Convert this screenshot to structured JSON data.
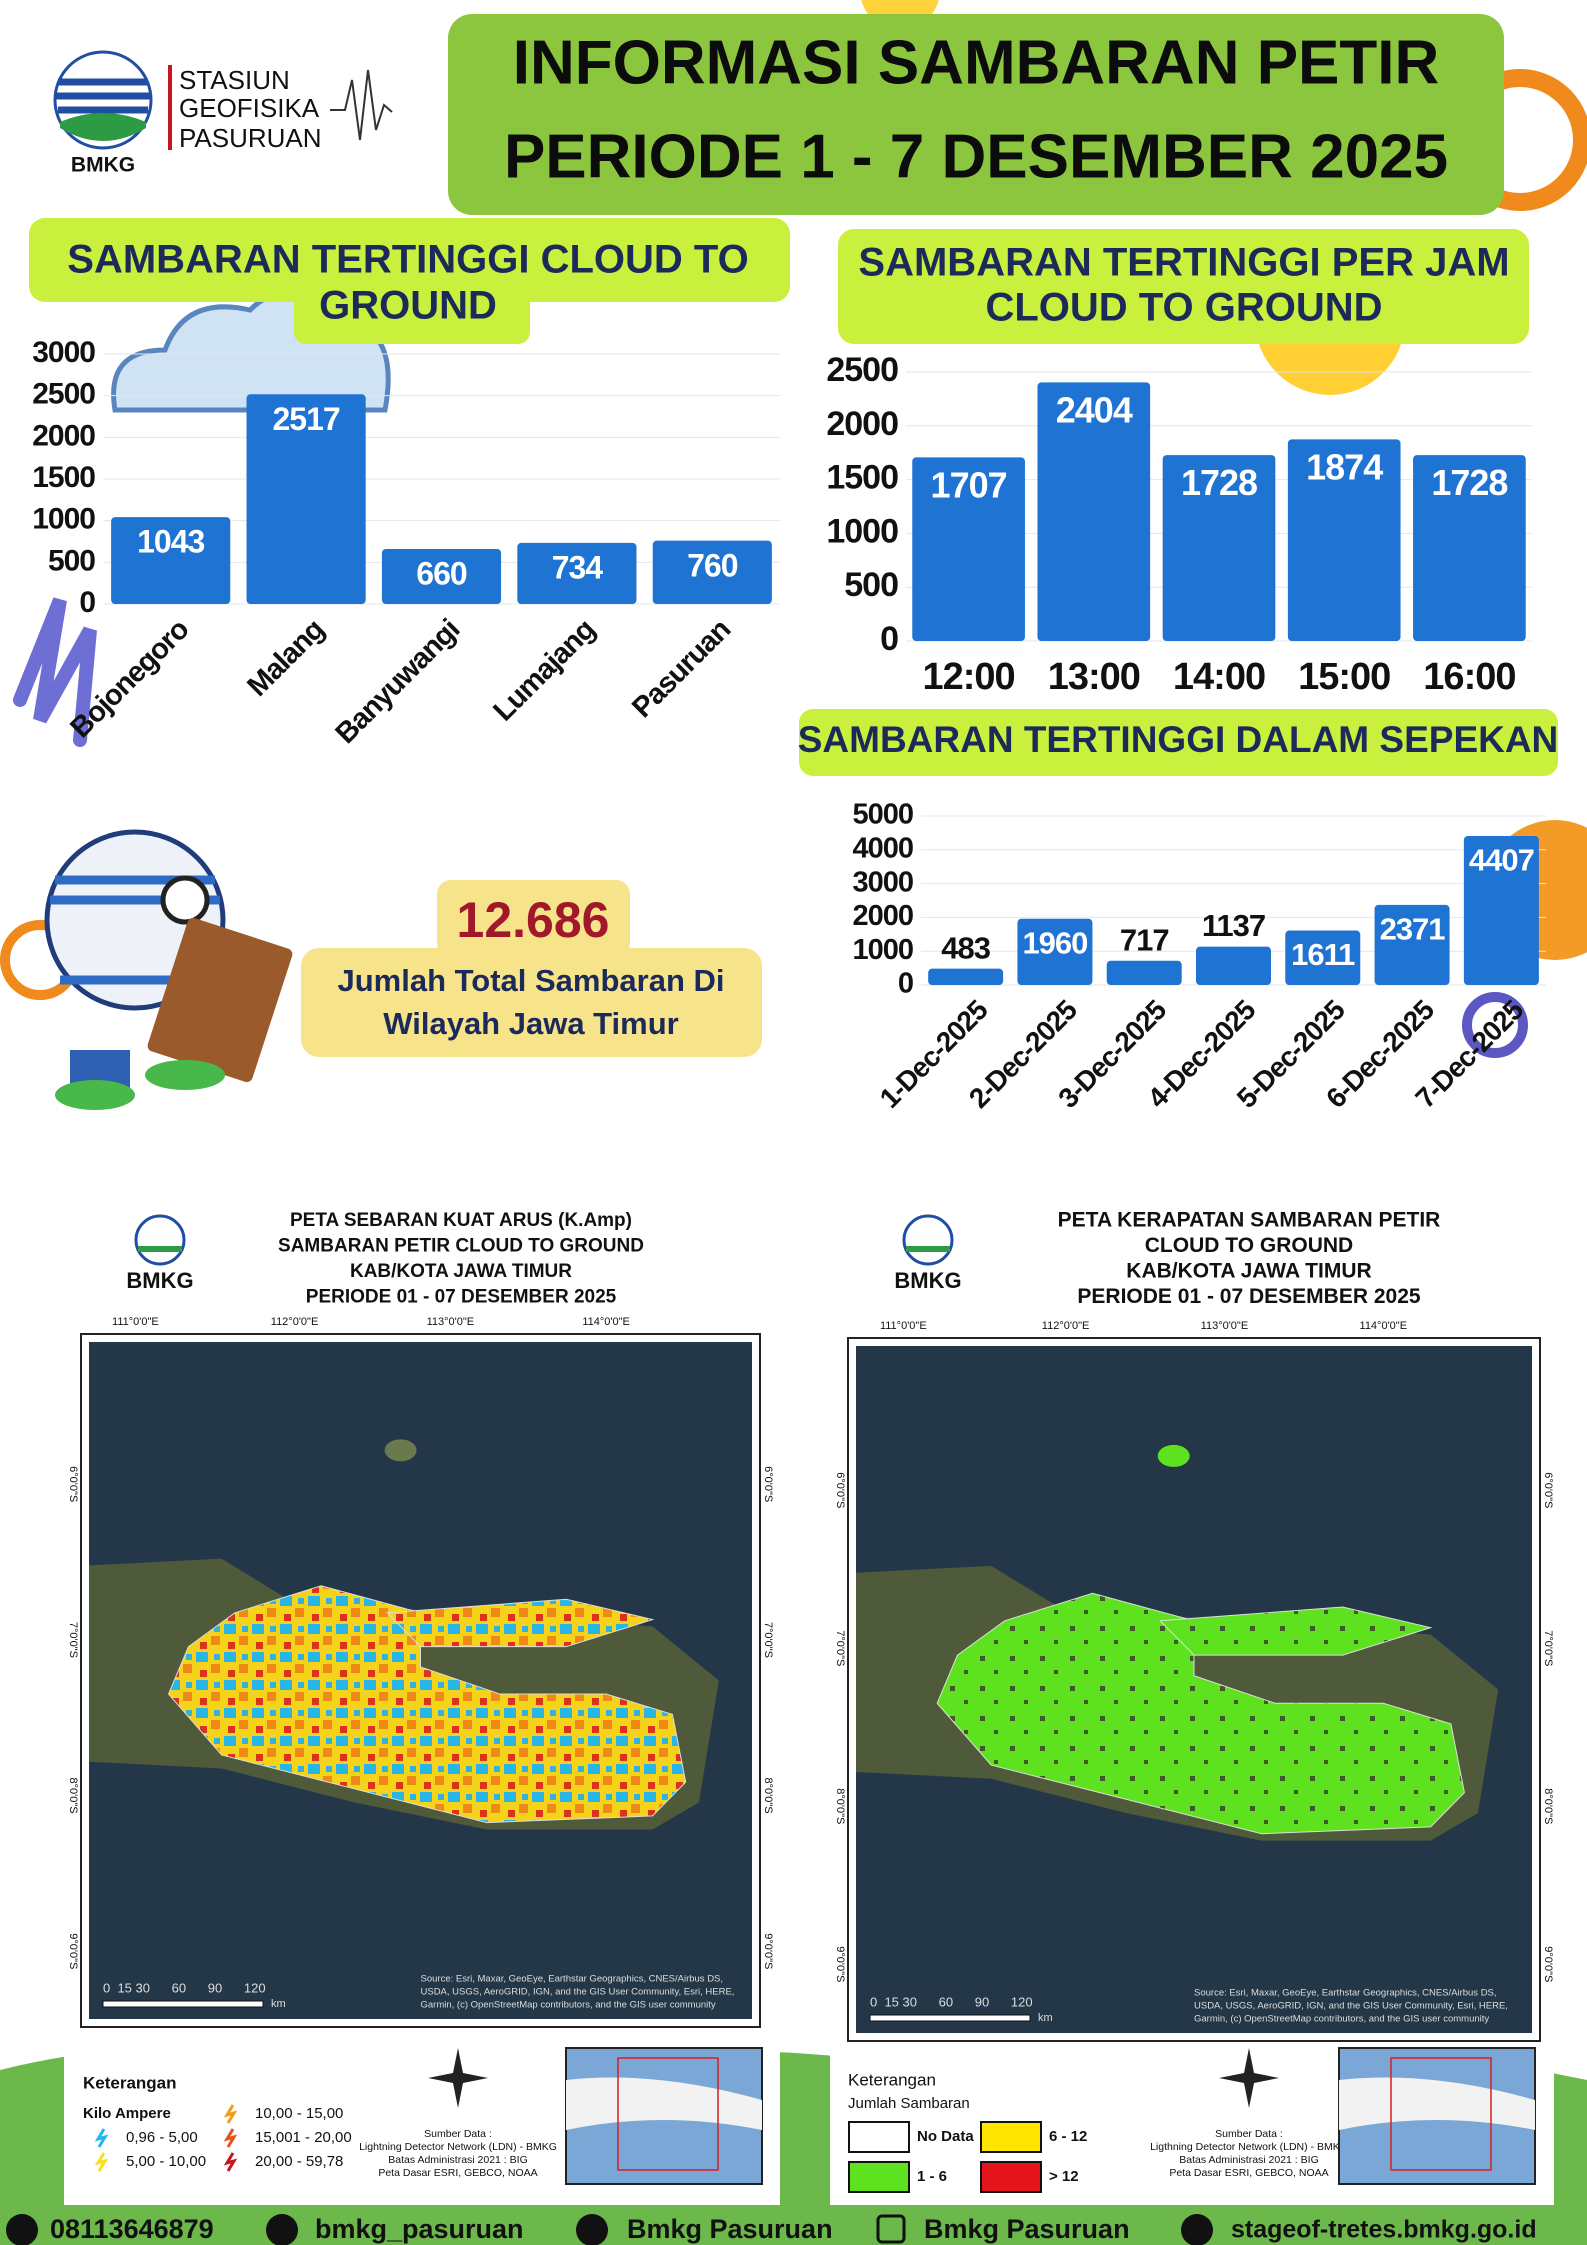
{
  "header": {
    "station": [
      "STASIUN",
      "GEOFISIKA",
      "PASURUAN"
    ],
    "logo_caption": "BMKG",
    "title": [
      "INFORMASI SAMBARAN PETIR",
      "PERIODE 1 - 7 DESEMBER 2025"
    ]
  },
  "chart_data": [
    {
      "type": "bar",
      "title": [
        "SAMBARAN TERTINGGI  CLOUD TO",
        "GROUND"
      ],
      "categories": [
        "Bojonegoro",
        "Malang",
        "Banyuwangi",
        "Lumajang",
        "Pasuruan"
      ],
      "values": [
        1043,
        2517,
        660,
        734,
        760
      ],
      "color": "#1f73d3",
      "ylim": [
        0,
        3000
      ],
      "yticks": [
        0,
        500,
        1000,
        1500,
        2000,
        2500,
        3000
      ],
      "grid": true
    },
    {
      "type": "bar",
      "title": [
        "SAMBARAN TERTINGGI PER JAM",
        "CLOUD TO GROUND"
      ],
      "categories": [
        "12:00",
        "13:00",
        "14:00",
        "15:00",
        "16:00"
      ],
      "values": [
        1707,
        2404,
        1728,
        1874,
        1728
      ],
      "color": "#1f73d3",
      "ylim": [
        0,
        2500
      ],
      "yticks": [
        0,
        500,
        1000,
        1500,
        2000,
        2500
      ],
      "grid": true
    },
    {
      "type": "bar",
      "title": [
        "SAMBARAN TERTINGGI DALAM SEPEKAN"
      ],
      "categories": [
        "1-Dec-2025",
        "2-Dec-2025",
        "3-Dec-2025",
        "4-Dec-2025",
        "5-Dec-2025",
        "6-Dec-2025",
        "7-Dec-2025"
      ],
      "values": [
        483,
        1960,
        717,
        1137,
        1611,
        2371,
        4407
      ],
      "color": "#1f73d3",
      "ylim": [
        0,
        5000
      ],
      "yticks": [
        0,
        1000,
        2000,
        3000,
        4000,
        5000
      ],
      "grid": true
    }
  ],
  "total": {
    "value": "12.686",
    "caption": [
      "Jumlah Total Sambaran Di",
      "Wilayah Jawa Timur"
    ]
  },
  "maps": [
    {
      "logo": "BMKG",
      "title": [
        "PETA SEBARAN KUAT ARUS (K.Amp)",
        "SAMBARAN PETIR CLOUD TO GROUND",
        "KAB/KOTA JAWA TIMUR",
        "PERIODE 01 - 07 DESEMBER 2025"
      ],
      "lon_labels": [
        "111°0'0\"E",
        "112°0'0\"E",
        "113°0'0\"E",
        "114°0'0\"E"
      ],
      "lat_labels": [
        "6°0'0\"S",
        "7°0'0\"S",
        "8°0'0\"S",
        "9°0'0\"S"
      ],
      "scale": "0  15 30      60      90      120",
      "scale_unit": "km",
      "attribution": [
        "Source: Esri, Maxar, GeoEye, Earthstar Geographics, CNES/Airbus DS,",
        "USDA, USGS, AeroGRID, IGN, and the GIS User Community, Esri, HERE,",
        "Garmin, (c) OpenStreetMap contributors, and the GIS user community"
      ],
      "legend_title": "Keterangan",
      "legend_subtitle": "Kilo Ampere",
      "legend_items": [
        {
          "label": "0,96 - 5,00",
          "color": "#22b8e8"
        },
        {
          "label": "5,00 - 10,00",
          "color": "#f5e21b"
        },
        {
          "label": "10,00 - 15,00",
          "color": "#f39c1a"
        },
        {
          "label": "15,001 - 20,00",
          "color": "#e8501c"
        },
        {
          "label": "20,00 - 59,78",
          "color": "#c4161c"
        }
      ],
      "source": [
        "Sumber Data :",
        "Lightning Detector Network (LDN) - BMKG",
        "Batas Administrasi 2021  : BIG",
        "Peta Dasar ESRI, GEBCO, NOAA"
      ]
    },
    {
      "logo": "BMKG",
      "title": [
        "PETA KERAPATAN SAMBARAN PETIR",
        "CLOUD TO GROUND",
        "KAB/KOTA JAWA TIMUR",
        "PERIODE 01 - 07 DESEMBER  2025"
      ],
      "lon_labels": [
        "111°0'0\"E",
        "112°0'0\"E",
        "113°0'0\"E",
        "114°0'0\"E"
      ],
      "lat_labels": [
        "6°0'0\"S",
        "7°0'0\"S",
        "8°0'0\"S",
        "9°0'0\"S"
      ],
      "scale": "0  15 30      60      90      120",
      "scale_unit": "km",
      "attribution": [
        "Source: Esri, Maxar, GeoEye, Earthstar Geographics, CNES/Airbus DS,",
        "USDA, USGS, AeroGRID, IGN, and the GIS User Community, Esri, HERE,",
        "Garmin, (c) OpenStreetMap contributors, and the GIS user community"
      ],
      "legend_title": "Keterangan",
      "legend_subtitle": "Jumlah Sambaran",
      "legend_items": [
        {
          "label": "No Data",
          "color": "#ffffff"
        },
        {
          "label": "1 - 6",
          "color": "#5ee21f"
        },
        {
          "label": "6 - 12",
          "color": "#ffe600"
        },
        {
          "label": "> 12",
          "color": "#e3141b"
        }
      ],
      "source": [
        "Sumber Data :",
        "Ligthning Detector Network (LDN) - BMKG",
        "Batas Administrasi 2021  : BIG",
        "Peta Dasar ESRI, GEBCO, NOAA"
      ]
    }
  ],
  "footer": [
    "08113646879",
    "bmkg_pasuruan",
    "Bmkg Pasuruan",
    "Bmkg Pasuruan",
    "stageof-tretes.bmkg.go.id"
  ]
}
